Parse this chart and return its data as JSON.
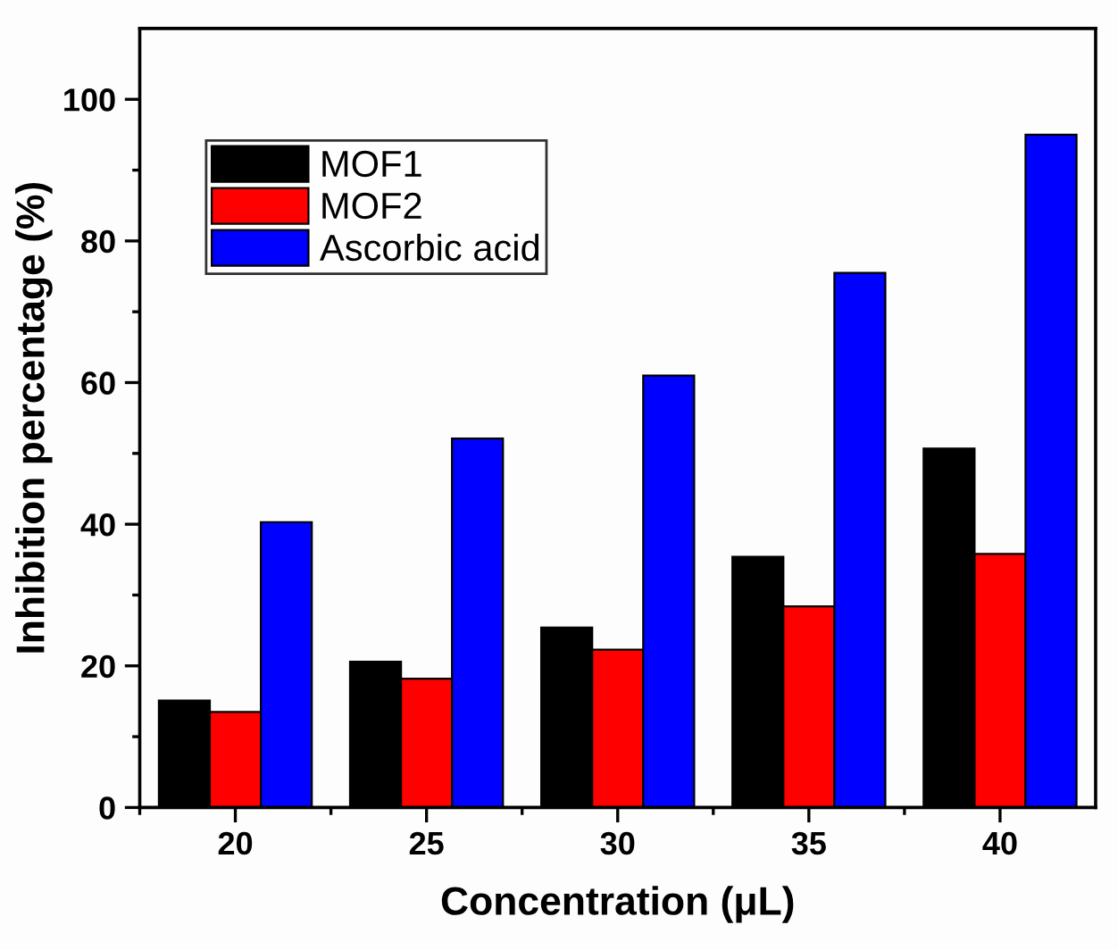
{
  "chart_data": {
    "type": "bar",
    "xlabel": "Concentration (μL)",
    "ylabel": "Inhibition percentage (%)",
    "categories": [
      "20",
      "25",
      "30",
      "35",
      "40"
    ],
    "series": [
      {
        "name": "MOF1",
        "color": "#000000",
        "values": [
          15.1,
          20.6,
          25.4,
          35.4,
          50.7
        ]
      },
      {
        "name": "MOF2",
        "color": "#ff0000",
        "values": [
          13.5,
          18.2,
          22.3,
          28.4,
          35.8
        ]
      },
      {
        "name": "Ascorbic acid",
        "color": "#0000ff",
        "values": [
          40.3,
          52.1,
          61.0,
          75.5,
          95.0
        ]
      }
    ],
    "ylim": [
      0,
      110
    ],
    "yticks": [
      0,
      {
        "value": 10,
        "label": null
      },
      20,
      {
        "value": 30,
        "label": null
      },
      40,
      {
        "value": 50,
        "label": null
      },
      60,
      {
        "value": 70,
        "label": null
      },
      80,
      {
        "value": 90,
        "label": null
      },
      100
    ],
    "grid": false,
    "legend": "top left"
  }
}
